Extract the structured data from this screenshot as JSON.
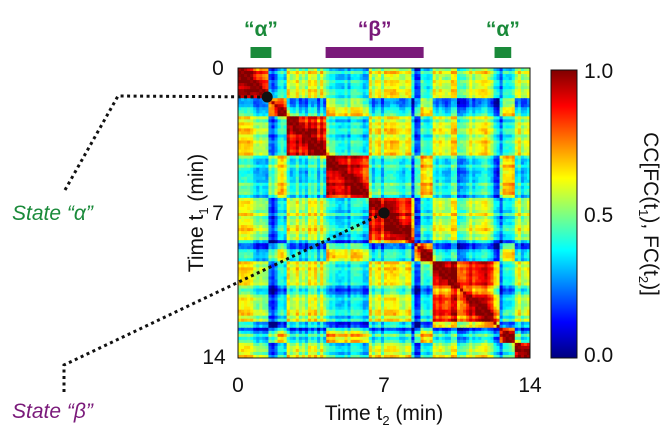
{
  "chart_data": {
    "type": "heatmap",
    "xlabel_main": "Time t",
    "xlabel_sub": "2",
    "xlabel_unit": " (min)",
    "ylabel_main": "Time t",
    "ylabel_sub": "1",
    "ylabel_unit": " (min)",
    "x_ticks": [
      "0",
      "7",
      "14"
    ],
    "y_ticks": [
      "0",
      "7",
      "14"
    ],
    "xlim": [
      0,
      14
    ],
    "ylim": [
      0,
      14
    ],
    "colorbar": {
      "label_parts": [
        "CC[FC(t",
        "1",
        "), FC(t",
        "2",
        ")]"
      ],
      "ticks": [
        "0.0",
        "0.5",
        "1.0"
      ],
      "range": [
        0.0,
        1.0
      ]
    },
    "block_states": [
      "a",
      "b",
      "a",
      "b",
      "a",
      "b",
      "a",
      "b",
      "a"
    ],
    "segment_edges_min": [
      0,
      1.4,
      2.3,
      4.2,
      6.3,
      8.5,
      9.3,
      12.5,
      13.2,
      14
    ],
    "state_bars": [
      {
        "label": "“α”",
        "start": 0.6,
        "end": 1.6,
        "color": "#1a8a3a"
      },
      {
        "label": "“β”",
        "start": 4.2,
        "end": 8.9,
        "color": "#7a1a7a"
      },
      {
        "label": "“α”",
        "start": 12.3,
        "end": 13.1,
        "color": "#1a8a3a"
      }
    ],
    "annotated_points": [
      {
        "state": "State “α”",
        "t1": 1.4,
        "t2": 1.4,
        "color": "#1a8a3a"
      },
      {
        "state": "State “β”",
        "t1": 7.0,
        "t2": 7.0,
        "color": "#7a1a7a"
      }
    ]
  }
}
